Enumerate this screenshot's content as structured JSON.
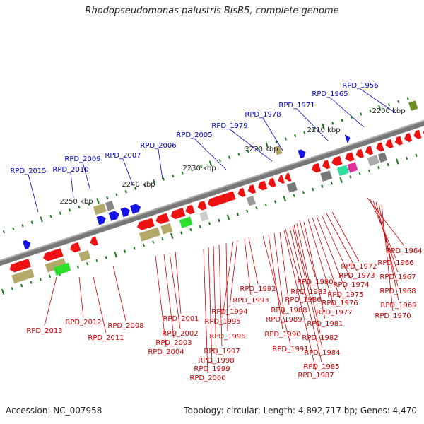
{
  "title": "Rhodopseudomonas palustris BisB5, complete genome",
  "footer": {
    "accession": "Accession: NC_007958",
    "summary": "Topology: circular; Length: 4,892,717 bp; Genes: 4,470"
  },
  "scale_labels": [
    "2200 kbp",
    "2210 kbp",
    "2220 kbp",
    "2230 kbp",
    "2240 kbp",
    "2250 kbp"
  ],
  "genes_upper": [
    "RPD_1956",
    "RPD_1965",
    "RPD_1971",
    "RPD_1978",
    "RPD_1979",
    "RPD_2005",
    "RPD_2006",
    "RPD_2007",
    "RPD_2009",
    "RPD_2010",
    "RPD_2015"
  ],
  "genes_lower": [
    "RPD_1964",
    "RPD_1966",
    "RPD_1967",
    "RPD_1968",
    "RPD_1969",
    "RPD_1970",
    "RPD_1972",
    "RPD_1973",
    "RPD_1974",
    "RPD_1975",
    "RPD_1976",
    "RPD_1977",
    "RPD_1980",
    "RPD_1981",
    "RPD_1982",
    "RPD_1983",
    "RPD_1984",
    "RPD_1985",
    "RPD_1986",
    "RPD_1987",
    "RPD_1988",
    "RPD_1989",
    "RPD_1990",
    "RPD_1991",
    "RPD_1992",
    "RPD_1993",
    "RPD_1994",
    "RPD_1995",
    "RPD_1996",
    "RPD_1997",
    "RPD_1998",
    "RPD_1999",
    "RPD_2000",
    "RPD_2001",
    "RPD_2002",
    "RPD_2003",
    "RPD_2004",
    "RPD_2008",
    "RPD_2011",
    "RPD_2012",
    "RPD_2013"
  ],
  "colors": {
    "upper_label": "#0000cc",
    "lower_label": "#cc0000",
    "forward_gene": "#1414e6",
    "reverse_gene": "#ee1111",
    "backbone": "#777777",
    "tick": "#1a7a1a"
  }
}
